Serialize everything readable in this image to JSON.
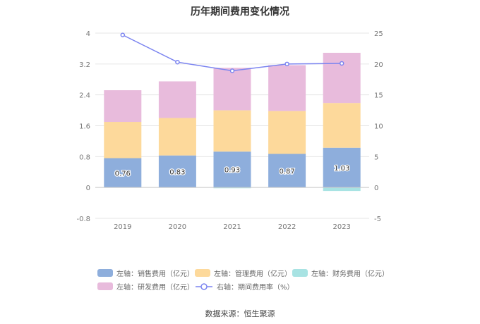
{
  "title": "历年期间费用变化情况",
  "source": "数据来源：恒生聚源",
  "chart_data": {
    "type": "bar",
    "stacked": true,
    "categories": [
      "2019",
      "2020",
      "2021",
      "2022",
      "2023"
    ],
    "left_axis": {
      "min": -0.8,
      "max": 4,
      "ticks": [
        "-0.8",
        "0",
        "0.8",
        "1.6",
        "2.4",
        "3.2",
        "4"
      ]
    },
    "right_axis": {
      "min": -5,
      "max": 25,
      "ticks": [
        "-5",
        "0",
        "5",
        "10",
        "15",
        "20",
        "25"
      ]
    },
    "series": [
      {
        "name": "左轴：销售费用（亿元）",
        "type": "bar",
        "axis": "left",
        "color": "#8eaedc",
        "values": [
          0.76,
          0.83,
          0.93,
          0.87,
          1.03
        ],
        "labels": [
          "0.76",
          "0.83",
          "0.93",
          "0.87",
          "1.03"
        ]
      },
      {
        "name": "左轴：管理费用（亿元）",
        "type": "bar",
        "axis": "left",
        "color": "#fdd99b",
        "values": [
          0.94,
          0.97,
          1.07,
          1.11,
          1.16
        ]
      },
      {
        "name": "左轴：财务费用（亿元）",
        "type": "bar",
        "axis": "left",
        "color": "#a8e3e3",
        "values": [
          0.0,
          0.0,
          -0.02,
          0.0,
          -0.09
        ]
      },
      {
        "name": "左轴：研发费用（亿元）",
        "type": "bar",
        "axis": "left",
        "color": "#e8bbdc",
        "values": [
          0.82,
          0.95,
          1.1,
          1.19,
          1.3
        ]
      },
      {
        "name": "右轴：期间费用率（%）",
        "type": "line",
        "axis": "right",
        "color": "#7b84f0",
        "values": [
          24.7,
          20.3,
          18.9,
          20.0,
          20.1
        ]
      }
    ],
    "grid": true,
    "legend_position": "bottom"
  }
}
